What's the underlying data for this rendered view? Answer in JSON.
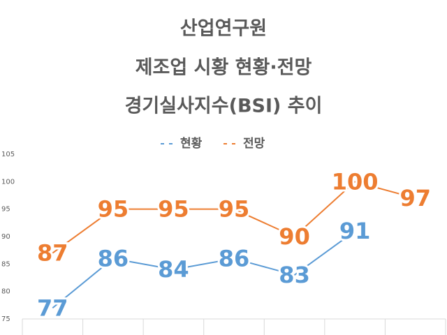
{
  "chart_data": {
    "type": "line",
    "title": [
      "산업연구원",
      "제조업 시황 현황·전망",
      "경기실사지수(BSI) 추이"
    ],
    "categories": [
      null,
      null,
      null,
      null,
      null,
      null,
      null
    ],
    "series": [
      {
        "name": "현황",
        "color": "#5b9bd5",
        "values": [
          77,
          86,
          84,
          86,
          83,
          91,
          null
        ]
      },
      {
        "name": "전망",
        "color": "#ed7d31",
        "values": [
          87,
          95,
          95,
          95,
          90,
          100,
          97
        ]
      }
    ],
    "ylim": [
      75,
      105
    ],
    "yticks": [
      75,
      80,
      85,
      90,
      95,
      100,
      105
    ],
    "legend": "top",
    "data_labels": true
  }
}
